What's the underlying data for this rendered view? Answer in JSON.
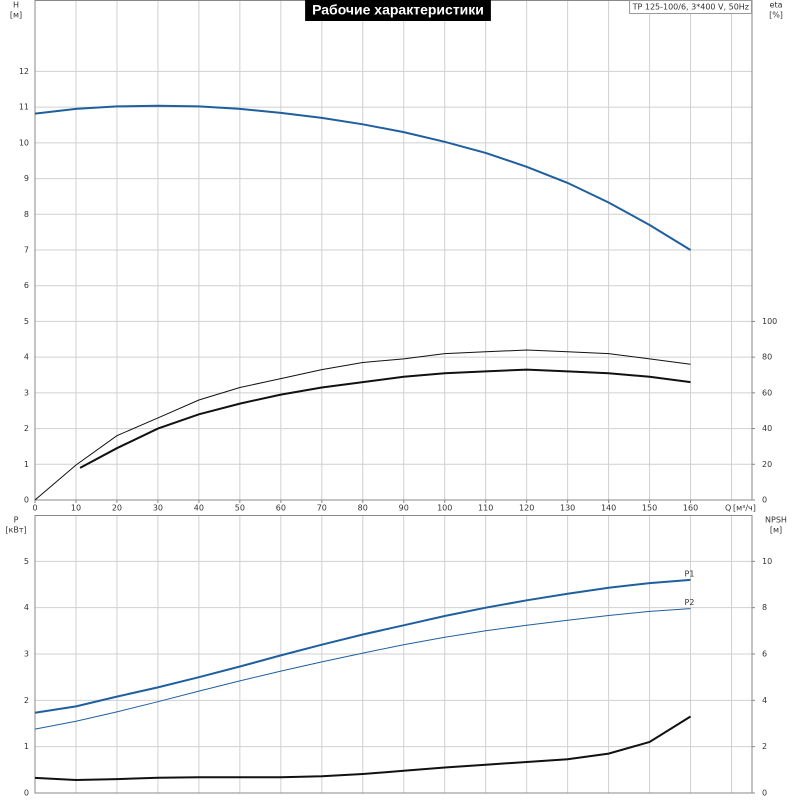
{
  "chart_data": [
    {
      "type": "line",
      "title": "Рабочие характеристики",
      "model": "TP 125-100/6, 3*400 V, 50Hz",
      "xlabel": "Q",
      "xunit": "[м³/ч]",
      "ylabel": "H",
      "yunit": "[м]",
      "y2label": "eta",
      "y2unit": "[%]",
      "xlim": [
        0,
        175
      ],
      "xticks": [
        0,
        10,
        20,
        30,
        40,
        50,
        60,
        70,
        80,
        90,
        100,
        110,
        120,
        130,
        140,
        150,
        160
      ],
      "xgrid": [
        0,
        10,
        20,
        30,
        40,
        50,
        60,
        70,
        80,
        90,
        100,
        110,
        120,
        130,
        140,
        150,
        160,
        170
      ],
      "ylim": [
        0,
        14
      ],
      "yticks": [
        0,
        1,
        2,
        3,
        4,
        5,
        6,
        7,
        8,
        9,
        10,
        11,
        12
      ],
      "y2lim": [
        0,
        280
      ],
      "y2ticks": [
        0,
        20,
        40,
        60,
        80,
        100
      ],
      "series": [
        {
          "color": "#1f5f9f",
          "width": 2,
          "x": [
            0,
            10,
            20,
            30,
            40,
            50,
            60,
            70,
            80,
            90,
            100,
            110,
            120,
            130,
            140,
            150,
            160
          ],
          "values": [
            10.82,
            10.95,
            11.02,
            11.04,
            11.02,
            10.95,
            10.84,
            10.7,
            10.52,
            10.3,
            10.03,
            9.72,
            9.33,
            8.88,
            8.33,
            7.7,
            7.0
          ]
        },
        {
          "color": "#111111",
          "width": 1,
          "axis": "y2",
          "x": [
            0,
            10,
            20,
            30,
            40,
            50,
            60,
            70,
            80,
            90,
            100,
            110,
            120,
            130,
            140,
            150,
            160
          ],
          "values": [
            0,
            19.6,
            36,
            46,
            56,
            63,
            68,
            73,
            77,
            79,
            82,
            83,
            84,
            83,
            82,
            79,
            76
          ]
        },
        {
          "color": "#111111",
          "width": 2,
          "axis": "y2",
          "x": [
            11,
            20,
            30,
            40,
            50,
            60,
            70,
            80,
            90,
            100,
            110,
            120,
            130,
            140,
            150,
            160
          ],
          "values": [
            18,
            29,
            40,
            48,
            54,
            59,
            63,
            66,
            69,
            71,
            72,
            73,
            72,
            71,
            69,
            66
          ]
        }
      ]
    },
    {
      "type": "line",
      "ylabel": "P",
      "yunit": "[кВт]",
      "y2label": "NPSH",
      "y2unit": "[м]",
      "xlim": [
        0,
        175
      ],
      "xgrid": [
        0,
        10,
        20,
        30,
        40,
        50,
        60,
        70,
        80,
        90,
        100,
        110,
        120,
        130,
        140,
        150,
        160,
        170
      ],
      "ylim": [
        0,
        6
      ],
      "yticks": [
        0,
        1,
        2,
        3,
        4,
        5
      ],
      "y2lim": [
        0,
        12
      ],
      "y2ticks": [
        0,
        2,
        4,
        6,
        8,
        10
      ],
      "series": [
        {
          "name": "P1",
          "color": "#1f5f9f",
          "width": 2,
          "x": [
            0,
            10,
            20,
            30,
            40,
            50,
            60,
            70,
            80,
            90,
            100,
            110,
            120,
            130,
            140,
            150,
            160
          ],
          "values": [
            1.73,
            1.87,
            2.08,
            2.28,
            2.5,
            2.73,
            2.97,
            3.2,
            3.42,
            3.62,
            3.82,
            4.0,
            4.16,
            4.3,
            4.43,
            4.53,
            4.6
          ]
        },
        {
          "name": "P2",
          "color": "#1f5f9f",
          "width": 1,
          "x": [
            0,
            10,
            20,
            30,
            40,
            50,
            60,
            70,
            80,
            90,
            100,
            110,
            120,
            130,
            140,
            150,
            160
          ],
          "values": [
            1.38,
            1.55,
            1.75,
            1.97,
            2.2,
            2.42,
            2.63,
            2.83,
            3.02,
            3.2,
            3.36,
            3.5,
            3.62,
            3.73,
            3.83,
            3.92,
            3.98
          ]
        },
        {
          "color": "#111111",
          "width": 2,
          "axis": "y2",
          "x": [
            0,
            10,
            20,
            30,
            40,
            50,
            60,
            70,
            80,
            90,
            100,
            110,
            120,
            130,
            140,
            150,
            160
          ],
          "values": [
            0.65,
            0.56,
            0.6,
            0.66,
            0.68,
            0.68,
            0.68,
            0.72,
            0.82,
            0.96,
            1.1,
            1.22,
            1.34,
            1.46,
            1.7,
            2.2,
            3.3
          ]
        }
      ]
    }
  ]
}
